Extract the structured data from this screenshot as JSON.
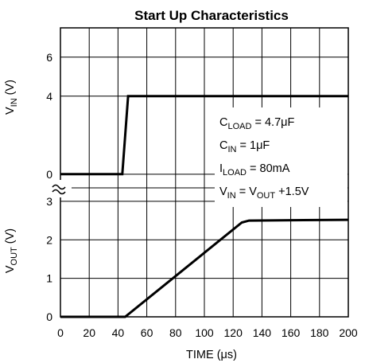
{
  "chart_data": {
    "type": "line",
    "title": "Start Up Characteristics",
    "xlabel": "TIME (μs)",
    "xlim": [
      0,
      200
    ],
    "x_ticks": [
      "0",
      "20",
      "40",
      "60",
      "80",
      "100",
      "120",
      "140",
      "160",
      "180",
      "200"
    ],
    "panels": [
      {
        "name": "vin",
        "ylabel": {
          "main": "V",
          "sub": "IN",
          "suffix": " (V)"
        },
        "ylim": [
          -0.7,
          7.5
        ],
        "y_ticks": [
          {
            "value": 0,
            "label": "0"
          },
          {
            "value": 4,
            "label": "4"
          },
          {
            "value": 6,
            "label": "6"
          }
        ],
        "series": [
          {
            "x": [
              0,
              43,
              47,
              200
            ],
            "y": [
              0,
              0,
              4,
              4
            ]
          }
        ]
      },
      {
        "name": "vout",
        "ylabel": {
          "main": "V",
          "sub": "OUT",
          "suffix": " (V)"
        },
        "ylim": [
          0,
          3.35
        ],
        "y_ticks": [
          {
            "value": 0,
            "label": "0"
          },
          {
            "value": 1,
            "label": "1"
          },
          {
            "value": 2,
            "label": "2"
          },
          {
            "value": 3,
            "label": "3"
          }
        ],
        "series": [
          {
            "x": [
              0,
              45,
              126,
              131,
              200
            ],
            "y": [
              0,
              0,
              2.45,
              2.5,
              2.52
            ]
          }
        ]
      }
    ],
    "axis_break": true,
    "grid": true,
    "annotations": [
      {
        "main": "C",
        "sub": "LOAD",
        "rest": " = 4.7μF"
      },
      {
        "main": "C",
        "sub": "IN",
        "rest": " = 1μF"
      },
      {
        "main": "I",
        "sub": "LOAD",
        "rest": " = 80mA"
      },
      {
        "main": "V",
        "sub": "IN",
        "mid": " = V",
        "sub2": "OUT",
        "rest": " +1.5V"
      }
    ]
  }
}
